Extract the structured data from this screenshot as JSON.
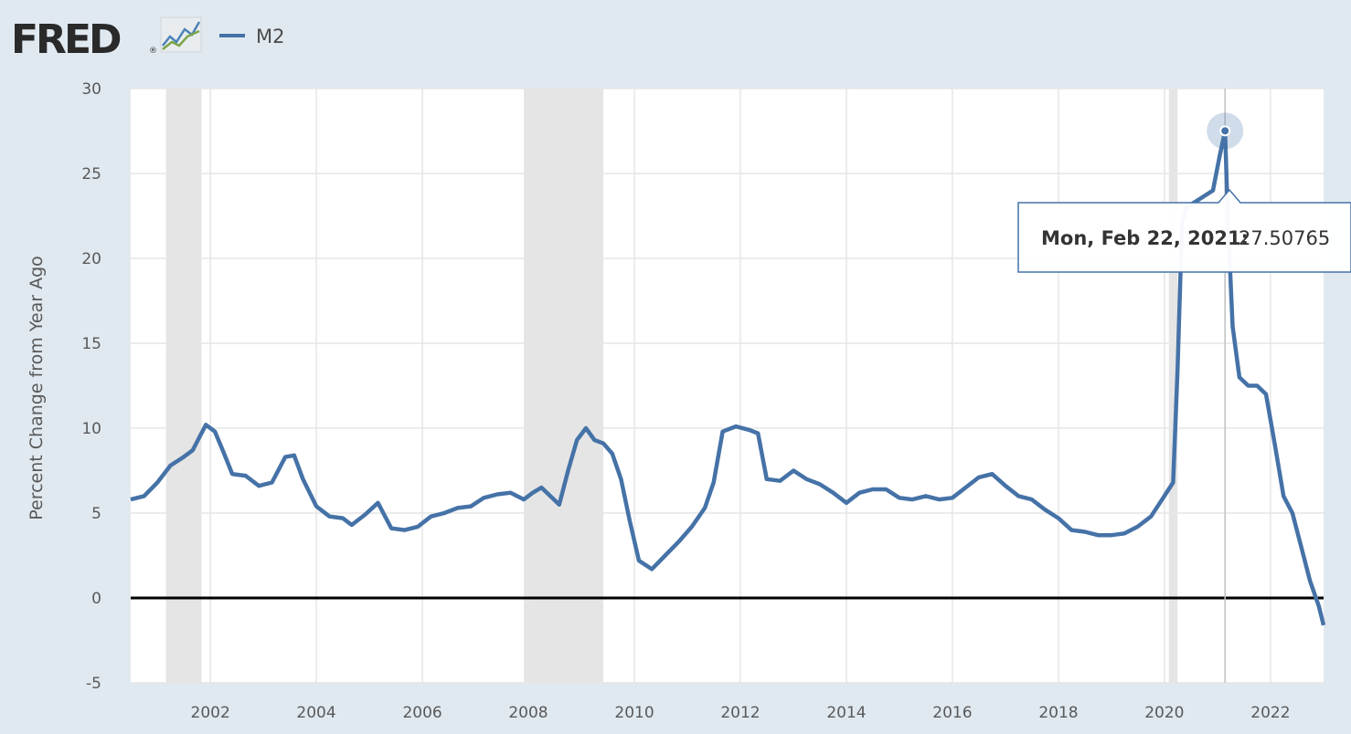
{
  "header": {
    "logo_text": "FRED",
    "logo_mark": "®",
    "legend_label": "M2"
  },
  "tooltip": {
    "date_label": "Mon, Feb 22, 2021:",
    "value_label": "27.50765",
    "x": "2021-02-22",
    "y": 27.50765
  },
  "colors": {
    "background": "#e1e9f0",
    "plot_background": "#ffffff",
    "series": "#4572a7",
    "recession": "#e5e5e5",
    "zero_line": "#000000",
    "grid": "#e6e6e6"
  },
  "chart_data": {
    "type": "line",
    "title": "",
    "xlabel": "",
    "ylabel": "Percent Change from Year Ago",
    "xlim": [
      "2000-07-01",
      "2023-01-02"
    ],
    "ylim": [
      -5,
      30
    ],
    "y_ticks": [
      -5,
      0,
      5,
      10,
      15,
      20,
      25,
      30
    ],
    "x_tick_labels": [
      "2002",
      "2004",
      "2006",
      "2008",
      "2010",
      "2012",
      "2014",
      "2016",
      "2018",
      "2020",
      "2022"
    ],
    "grid": true,
    "legend_position": "top-left",
    "zero_line": true,
    "recession_bands": [
      {
        "start": "2001-03-01",
        "end": "2001-11-01"
      },
      {
        "start": "2007-12-01",
        "end": "2009-06-01"
      },
      {
        "start": "2020-02-01",
        "end": "2020-04-01"
      }
    ],
    "series": [
      {
        "name": "M2",
        "x": [
          "2000-07-01",
          "2000-10-01",
          "2001-01-01",
          "2001-04-01",
          "2001-07-01",
          "2001-09-01",
          "2001-10-01",
          "2001-12-01",
          "2002-02-01",
          "2002-04-01",
          "2002-06-01",
          "2002-09-01",
          "2002-12-01",
          "2003-03-01",
          "2003-06-01",
          "2003-08-01",
          "2003-10-01",
          "2004-01-01",
          "2004-04-01",
          "2004-07-01",
          "2004-09-01",
          "2004-12-01",
          "2005-03-01",
          "2005-06-01",
          "2005-09-01",
          "2005-12-01",
          "2006-03-01",
          "2006-06-01",
          "2006-09-01",
          "2006-12-01",
          "2007-03-01",
          "2007-06-01",
          "2007-09-01",
          "2007-12-01",
          "2008-02-01",
          "2008-04-01",
          "2008-06-01",
          "2008-08-01",
          "2008-10-01",
          "2008-12-01",
          "2009-02-01",
          "2009-04-01",
          "2009-06-01",
          "2009-08-01",
          "2009-10-01",
          "2009-12-01",
          "2010-02-01",
          "2010-05-01",
          "2010-08-01",
          "2010-11-01",
          "2011-02-01",
          "2011-05-01",
          "2011-07-01",
          "2011-09-01",
          "2011-12-01",
          "2012-03-01",
          "2012-05-01",
          "2012-07-01",
          "2012-10-01",
          "2013-01-01",
          "2013-04-01",
          "2013-07-01",
          "2013-10-01",
          "2014-01-01",
          "2014-04-01",
          "2014-07-01",
          "2014-10-01",
          "2015-01-01",
          "2015-04-01",
          "2015-07-01",
          "2015-10-01",
          "2016-01-01",
          "2016-04-01",
          "2016-07-01",
          "2016-10-01",
          "2017-01-01",
          "2017-04-01",
          "2017-07-01",
          "2017-10-01",
          "2018-01-01",
          "2018-04-01",
          "2018-07-01",
          "2018-10-01",
          "2019-01-01",
          "2019-04-01",
          "2019-07-01",
          "2019-10-01",
          "2020-01-01",
          "2020-03-01",
          "2020-04-01",
          "2020-05-01",
          "2020-06-01",
          "2020-09-01",
          "2020-12-01",
          "2021-01-15",
          "2021-02-22",
          "2021-03-15",
          "2021-04-15",
          "2021-06-01",
          "2021-08-01",
          "2021-10-01",
          "2021-12-01",
          "2022-02-01",
          "2022-04-01",
          "2022-06-01",
          "2022-08-01",
          "2022-10-01",
          "2022-12-01",
          "2023-01-02"
        ],
        "values": [
          5.8,
          6.0,
          6.8,
          7.8,
          8.3,
          8.7,
          9.2,
          10.2,
          9.8,
          8.6,
          7.3,
          7.2,
          6.6,
          6.8,
          8.3,
          8.4,
          7.0,
          5.4,
          4.8,
          4.7,
          4.3,
          4.9,
          5.6,
          4.1,
          4.0,
          4.2,
          4.8,
          5.0,
          5.3,
          5.4,
          5.9,
          6.1,
          6.2,
          5.8,
          6.2,
          6.5,
          6.0,
          5.5,
          7.5,
          9.3,
          10.0,
          9.3,
          9.1,
          8.5,
          7.0,
          4.5,
          2.2,
          1.7,
          2.5,
          3.3,
          4.2,
          5.3,
          6.8,
          9.8,
          10.1,
          9.9,
          9.7,
          7.0,
          6.9,
          7.5,
          7.0,
          6.7,
          6.2,
          5.6,
          6.2,
          6.4,
          6.4,
          5.9,
          5.8,
          6.0,
          5.8,
          5.9,
          6.5,
          7.1,
          7.3,
          6.6,
          6.0,
          5.8,
          5.2,
          4.7,
          4.0,
          3.9,
          3.7,
          3.7,
          3.8,
          4.2,
          4.8,
          6.0,
          6.8,
          13.5,
          22.0,
          23.0,
          23.5,
          24.0,
          26.0,
          27.50765,
          22.0,
          16.0,
          13.0,
          12.5,
          12.5,
          12.0,
          9.0,
          6.0,
          5.0,
          3.0,
          1.0,
          -0.5,
          -1.6
        ]
      }
    ]
  }
}
